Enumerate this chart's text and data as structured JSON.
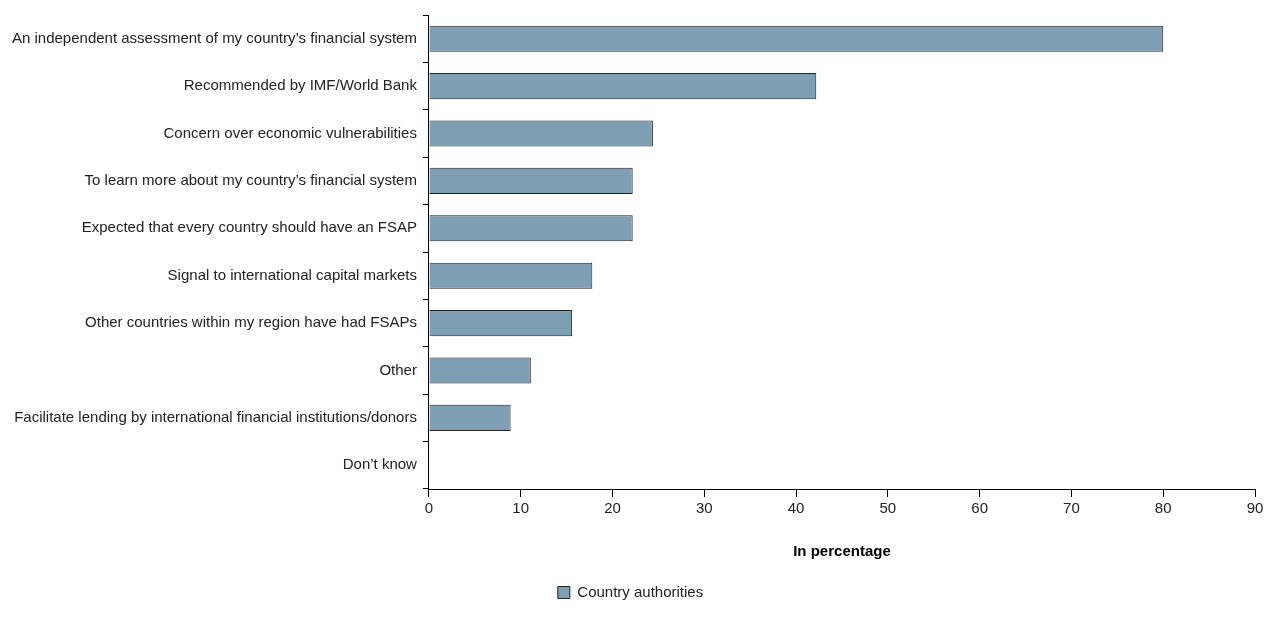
{
  "chart_data": {
    "type": "bar",
    "orientation": "horizontal",
    "xlabel": "In percentage",
    "categories": [
      "An independent assessment of my country’s financial system",
      "Recommended by IMF/World Bank",
      "Concern over economic vulnerabilities",
      "To learn more about my country’s financial system",
      "Expected that every country should have an FSAP",
      "Signal to international capital markets",
      "Other countries within my region have had FSAPs",
      "Other",
      "Facilitate lending by international financial institutions/donors",
      "Don’t know"
    ],
    "series": [
      {
        "name": "Country authorities",
        "color": "#7f9fb5",
        "values": [
          80,
          42.2,
          24.4,
          22.2,
          22.2,
          17.8,
          15.6,
          11.1,
          8.9,
          0
        ]
      }
    ],
    "xlim": [
      0,
      90
    ],
    "xticks": [
      0,
      10,
      20,
      30,
      40,
      50,
      60,
      70,
      80,
      90
    ],
    "grid": false,
    "legend": "bottom"
  }
}
